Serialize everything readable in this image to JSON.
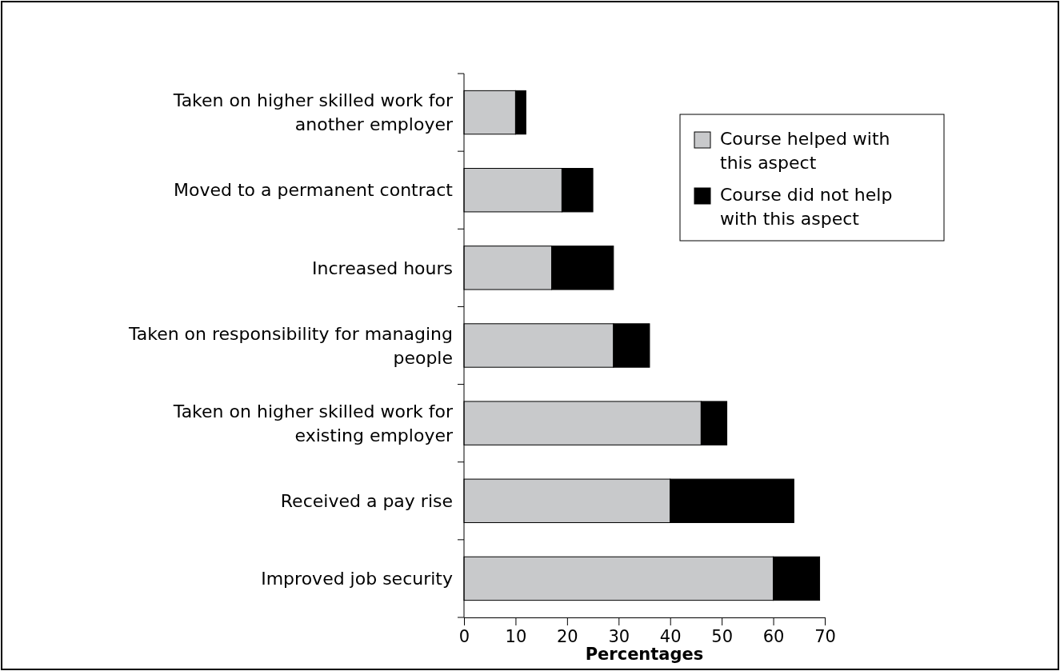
{
  "chart_data": {
    "type": "bar",
    "orientation": "horizontal",
    "stacked": true,
    "xlabel": "Percentages",
    "categories": [
      "Taken on higher skilled work for another employer",
      "Moved to a permanent contract",
      "Increased hours",
      "Taken on responsibility for managing people",
      "Taken on higher skilled work for existing employer",
      "Received a pay rise",
      "Improved job security"
    ],
    "series": [
      {
        "name": "Course helped with this aspect",
        "color": "#c8c9cb",
        "values": [
          10,
          19,
          17,
          29,
          46,
          40,
          60
        ]
      },
      {
        "name": "Course did not help with this aspect",
        "color": "#000000",
        "values": [
          2,
          6,
          12,
          7,
          5,
          24,
          9
        ]
      }
    ],
    "xlim": [
      0,
      70
    ],
    "xticks": [
      0,
      10,
      20,
      30,
      40,
      50,
      60,
      70
    ],
    "grid": false,
    "legend": "top right"
  }
}
